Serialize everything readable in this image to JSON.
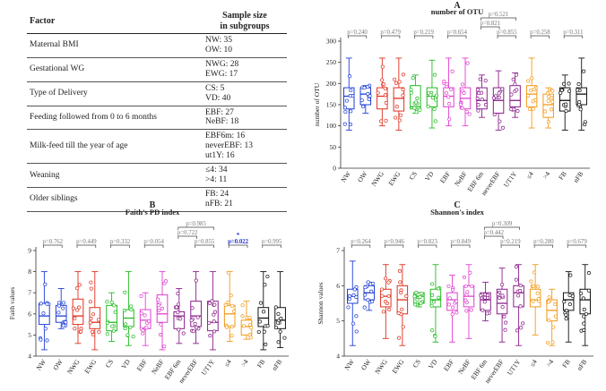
{
  "table": {
    "header": {
      "factor": "Factor",
      "sample": "Sample size\nin subgroups"
    },
    "rows": [
      {
        "factor": "Maternal BMI",
        "values": [
          "NW: 35",
          "OW: 10"
        ]
      },
      {
        "factor": "Gestational WG",
        "values": [
          "NWG: 28",
          "EWG: 17"
        ]
      },
      {
        "factor": "Type of Delivery",
        "values": [
          "CS: 5",
          "VD: 40"
        ]
      },
      {
        "factor": "Feeding followed from 0 to 6 months",
        "values": [
          "EBF: 27",
          "NeBF: 18"
        ]
      },
      {
        "factor": "Milk-feed till the year of age",
        "values": [
          "EBF6m: 16",
          "neverEBF: 13",
          "ut1Y: 16"
        ]
      },
      {
        "factor": "Weaning",
        "values": [
          "≤4: 34",
          ">4: 11"
        ]
      },
      {
        "factor": "Older siblings",
        "values": [
          "FB: 24",
          "nFB: 21"
        ]
      }
    ]
  },
  "colors": {
    "NW": "#1f3fd6",
    "OW": "#1f3fd6",
    "NWG": "#e0301e",
    "EWG": "#e0301e",
    "CS": "#22bb22",
    "VD": "#22bb22",
    "EBF": "#e040d0",
    "NeBF": "#e040d0",
    "EBF 6m": "#8a1f8a",
    "neverEBF": "#8a1f8a",
    "UT1Y": "#8a1f8a",
    "≤4": "#f39a18",
    ">4": "#f39a18",
    "FB": "#111111",
    "nFB": "#111111"
  },
  "chart_data": [
    {
      "id": "A",
      "letter": "A",
      "title": "number of OTU",
      "type": "box",
      "ylabel": "number of OTU",
      "ylim": [
        0,
        300
      ],
      "yticks": [
        0,
        50,
        100,
        150,
        200,
        250,
        300
      ],
      "categories": [
        "NW",
        "OW",
        "NWG",
        "EWG",
        "CS",
        "VD",
        "EBF",
        "NeBF",
        "EBF 6m",
        "neverEBF",
        "UT1Y",
        "≤4",
        ">4",
        "FB",
        "nFB"
      ],
      "boxes": [
        {
          "min": 90,
          "q1": 140,
          "median": 170,
          "q3": 190,
          "max": 260
        },
        {
          "min": 130,
          "q1": 150,
          "median": 175,
          "q3": 190,
          "max": 195
        },
        {
          "min": 100,
          "q1": 140,
          "median": 170,
          "q3": 190,
          "max": 260
        },
        {
          "min": 90,
          "q1": 135,
          "median": 165,
          "q3": 190,
          "max": 260
        },
        {
          "min": 130,
          "q1": 140,
          "median": 145,
          "q3": 195,
          "max": 220
        },
        {
          "min": 95,
          "q1": 145,
          "median": 170,
          "q3": 190,
          "max": 255
        },
        {
          "min": 100,
          "q1": 145,
          "median": 170,
          "q3": 190,
          "max": 260
        },
        {
          "min": 100,
          "q1": 140,
          "median": 165,
          "q3": 190,
          "max": 260
        },
        {
          "min": 120,
          "q1": 140,
          "median": 160,
          "q3": 190,
          "max": 220
        },
        {
          "min": 90,
          "q1": 130,
          "median": 160,
          "q3": 190,
          "max": 230
        },
        {
          "min": 120,
          "q1": 145,
          "median": 160,
          "q3": 195,
          "max": 225
        },
        {
          "min": 95,
          "q1": 145,
          "median": 175,
          "q3": 195,
          "max": 260
        },
        {
          "min": 95,
          "q1": 120,
          "median": 150,
          "q3": 175,
          "max": 190
        },
        {
          "min": 90,
          "q1": 135,
          "median": 160,
          "q3": 190,
          "max": 220
        },
        {
          "min": 90,
          "q1": 150,
          "median": 175,
          "q3": 190,
          "max": 260
        }
      ],
      "pvalues": [
        {
          "a": 0,
          "b": 1,
          "p": "p=0.240",
          "level": 0
        },
        {
          "a": 2,
          "b": 3,
          "p": "p=0.479",
          "level": 0
        },
        {
          "a": 4,
          "b": 5,
          "p": "p=0.219",
          "level": 0
        },
        {
          "a": 6,
          "b": 7,
          "p": "p=0.654",
          "level": 0
        },
        {
          "a": 8,
          "b": 10,
          "p": "p=0.521",
          "level": 2
        },
        {
          "a": 8,
          "b": 9,
          "p": "p=0.821",
          "level": 1
        },
        {
          "a": 9,
          "b": 10,
          "p": "p=0.855",
          "level": 0
        },
        {
          "a": 11,
          "b": 12,
          "p": "p=0.258",
          "level": 0
        },
        {
          "a": 13,
          "b": 14,
          "p": "p=0.311",
          "level": 0
        }
      ]
    },
    {
      "id": "B",
      "letter": "B",
      "title": "Faith's PD index",
      "type": "box",
      "ylabel": "Faith values",
      "ylim": [
        4,
        9
      ],
      "yticks": [
        4,
        5,
        6,
        7,
        8,
        9
      ],
      "categories": [
        "NW",
        "OW",
        "NWG",
        "EWG",
        "CS",
        "VD",
        "EBF",
        "NeBF",
        "EBF 6m",
        "neverEBF",
        "UT1Y",
        "≤4",
        ">4",
        "FB",
        "nFB"
      ],
      "boxes": [
        {
          "min": 4.3,
          "q1": 5.5,
          "median": 5.9,
          "q3": 6.5,
          "max": 8.0
        },
        {
          "min": 5.3,
          "q1": 5.6,
          "median": 5.9,
          "q3": 6.4,
          "max": 7.2
        },
        {
          "min": 4.6,
          "q1": 5.5,
          "median": 5.9,
          "q3": 6.7,
          "max": 8.0
        },
        {
          "min": 4.3,
          "q1": 5.3,
          "median": 5.6,
          "q3": 6.3,
          "max": 8.0
        },
        {
          "min": 4.7,
          "q1": 5.2,
          "median": 5.6,
          "q3": 6.4,
          "max": 7.0
        },
        {
          "min": 4.5,
          "q1": 5.4,
          "median": 5.8,
          "q3": 6.2,
          "max": 8.0
        },
        {
          "min": 4.5,
          "q1": 5.3,
          "median": 5.7,
          "q3": 6.2,
          "max": 7.0
        },
        {
          "min": 4.3,
          "q1": 5.6,
          "median": 6.0,
          "q3": 6.9,
          "max": 8.0
        },
        {
          "min": 4.6,
          "q1": 5.3,
          "median": 5.9,
          "q3": 6.1,
          "max": 7.2
        },
        {
          "min": 4.6,
          "q1": 5.4,
          "median": 5.9,
          "q3": 6.6,
          "max": 8.0
        },
        {
          "min": 4.3,
          "q1": 5.2,
          "median": 5.6,
          "q3": 6.6,
          "max": 8.0
        },
        {
          "min": 4.7,
          "q1": 5.4,
          "median": 6.0,
          "q3": 6.4,
          "max": 8.0
        },
        {
          "min": 4.8,
          "q1": 5.0,
          "median": 5.4,
          "q3": 5.7,
          "max": 6.6
        },
        {
          "min": 4.3,
          "q1": 5.4,
          "median": 5.8,
          "q3": 6.3,
          "max": 8.0
        },
        {
          "min": 4.4,
          "q1": 5.3,
          "median": 5.7,
          "q3": 6.3,
          "max": 8.0
        }
      ],
      "pvalues": [
        {
          "a": 0,
          "b": 1,
          "p": "p=0.762",
          "level": 0
        },
        {
          "a": 2,
          "b": 3,
          "p": "p=0.449",
          "level": 0
        },
        {
          "a": 4,
          "b": 5,
          "p": "p=0.332",
          "level": 0
        },
        {
          "a": 6,
          "b": 7,
          "p": "p=0.054",
          "level": 0
        },
        {
          "a": 8,
          "b": 10,
          "p": "p=0.985",
          "level": 2
        },
        {
          "a": 8,
          "b": 9,
          "p": "p=0.722",
          "level": 1
        },
        {
          "a": 9,
          "b": 10,
          "p": "p=0.855",
          "level": 0
        },
        {
          "a": 11,
          "b": 12,
          "p": "p=0.022",
          "level": 0,
          "sig": true,
          "star": "*"
        },
        {
          "a": 13,
          "b": 14,
          "p": "p=0.995",
          "level": 0
        }
      ]
    },
    {
      "id": "C",
      "letter": "C",
      "title": "Shannon's index",
      "type": "box",
      "ylabel": "Shannon values",
      "ylim": [
        4,
        7
      ],
      "yticks": [
        4,
        5,
        6,
        7
      ],
      "categories": [
        "NW",
        "OW",
        "NWG",
        "EWG",
        "CS",
        "VD",
        "EBF",
        "NeBF",
        "EBF 6m",
        "neverEBF",
        "UT1Y",
        "≤4",
        ">4",
        "FB",
        "nFB"
      ],
      "boxes": [
        {
          "min": 4.3,
          "q1": 5.5,
          "median": 5.7,
          "q3": 5.9,
          "max": 6.7
        },
        {
          "min": 5.3,
          "q1": 5.6,
          "median": 5.8,
          "q3": 6.0,
          "max": 6.1
        },
        {
          "min": 4.5,
          "q1": 5.4,
          "median": 5.7,
          "q3": 5.9,
          "max": 6.6
        },
        {
          "min": 4.3,
          "q1": 5.2,
          "median": 5.6,
          "q3": 6.0,
          "max": 6.6
        },
        {
          "min": 5.4,
          "q1": 5.5,
          "median": 5.7,
          "q3": 5.8,
          "max": 5.8
        },
        {
          "min": 4.4,
          "q1": 5.4,
          "median": 5.6,
          "q3": 5.9,
          "max": 6.6
        },
        {
          "min": 4.4,
          "q1": 5.3,
          "median": 5.6,
          "q3": 5.8,
          "max": 6.3
        },
        {
          "min": 4.5,
          "q1": 5.4,
          "median": 5.7,
          "q3": 6.0,
          "max": 6.6
        },
        {
          "min": 5.0,
          "q1": 5.3,
          "median": 5.6,
          "q3": 5.8,
          "max": 6.1
        },
        {
          "min": 4.4,
          "q1": 5.2,
          "median": 5.5,
          "q3": 5.9,
          "max": 6.5
        },
        {
          "min": 4.3,
          "q1": 5.4,
          "median": 5.8,
          "q3": 6.0,
          "max": 6.6
        },
        {
          "min": 4.6,
          "q1": 5.4,
          "median": 5.6,
          "q3": 5.9,
          "max": 6.6
        },
        {
          "min": 4.3,
          "q1": 5.0,
          "median": 5.3,
          "q3": 5.6,
          "max": 5.9
        },
        {
          "min": 4.4,
          "q1": 5.3,
          "median": 5.6,
          "q3": 5.8,
          "max": 6.4
        },
        {
          "min": 4.3,
          "q1": 5.2,
          "median": 5.6,
          "q3": 5.9,
          "max": 6.6
        }
      ],
      "pvalues": [
        {
          "a": 0,
          "b": 1,
          "p": "p=0.264",
          "level": 0
        },
        {
          "a": 2,
          "b": 3,
          "p": "p=0.946",
          "level": 0
        },
        {
          "a": 4,
          "b": 5,
          "p": "p=0.823",
          "level": 0
        },
        {
          "a": 6,
          "b": 7,
          "p": "p=0.849",
          "level": 0
        },
        {
          "a": 8,
          "b": 10,
          "p": "p=0.309",
          "level": 2
        },
        {
          "a": 8,
          "b": 9,
          "p": "p=0.442",
          "level": 1
        },
        {
          "a": 9,
          "b": 10,
          "p": "p=0.219",
          "level": 0
        },
        {
          "a": 11,
          "b": 12,
          "p": "p=0.280",
          "level": 0
        },
        {
          "a": 13,
          "b": 14,
          "p": "p=0.679",
          "level": 0
        }
      ]
    }
  ]
}
